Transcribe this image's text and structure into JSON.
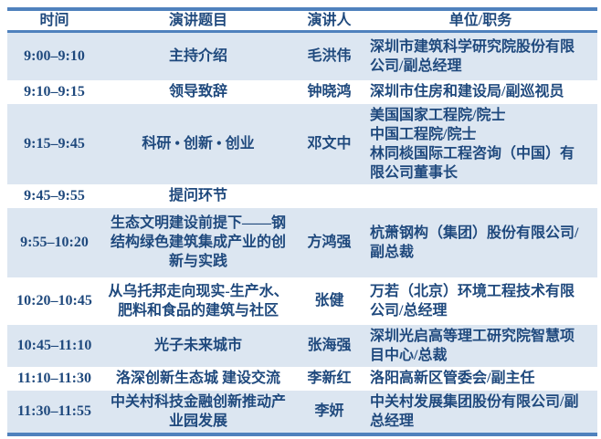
{
  "table": {
    "headers": {
      "time": "时间",
      "title": "演讲题目",
      "speaker": "演讲人",
      "org": "单位/职务"
    },
    "rows": [
      {
        "time": "9:00–9:10",
        "title": "主持介绍",
        "speaker": "毛洪伟",
        "org": "深圳市建筑科学研究院股份有限公司/副总经理"
      },
      {
        "time": "9:10–9:15",
        "title": "领导致辞",
        "speaker": "钟晓鸿",
        "org": "深圳市住房和建设局/副巡视员"
      },
      {
        "time": "9:15–9:45",
        "title": "科研 • 创新 • 创业",
        "speaker": "邓文中",
        "org": "美国国家工程院/院士\n中国工程院/院士\n林同棪国际工程咨询（中国）有限公司董事长"
      },
      {
        "time": "9:45–9:55",
        "title": "提问环节",
        "speaker": "",
        "org": ""
      },
      {
        "time": "9:55–10:20",
        "title": "生态文明建设前提下——钢结构绿色建筑集成产业的创新与实践",
        "speaker": "方鸿强",
        "org": "杭萧钢构（集团）股份有限公司/副总裁"
      },
      {
        "time": "10:20–10:45",
        "title": "从乌托邦走向现实-生产水、肥料和食品的建筑与社区",
        "speaker": "张健",
        "org": "万若（北京）环境工程技术有限公司/总经理"
      },
      {
        "time": "10:45–11:10",
        "title": "光子未来城市",
        "speaker": "张海强",
        "org": "深圳光启高等理工研究院智慧项目中心/总裁"
      },
      {
        "time": "11:10–11:30",
        "title": "洛深创新生态城 建设交流",
        "speaker": "李新红",
        "org": "洛阳高新区管委会/副主任"
      },
      {
        "time": "11:30–11:55",
        "title": "中关村科技金融创新推动产业园发展",
        "speaker": "李妍",
        "org": "中关村发展集团股份有限公司/副总经理"
      }
    ],
    "colors": {
      "border_blue": "#4f81bd",
      "row_shade": "#dce6f1",
      "text": "#1f497d"
    }
  }
}
